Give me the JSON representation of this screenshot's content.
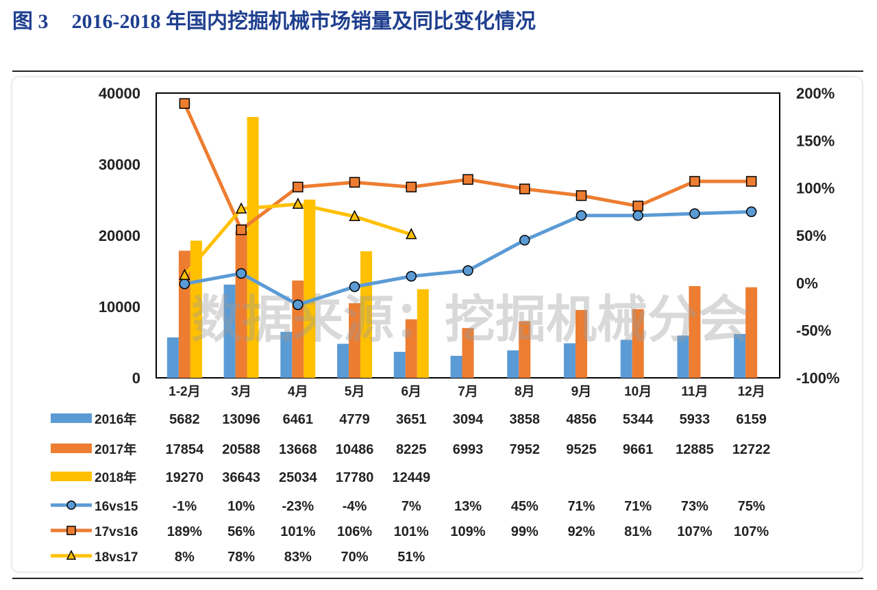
{
  "header": {
    "figure_number": "图 3",
    "figure_title": "2016-2018 年国内挖掘机械市场销量及同比变化情况"
  },
  "watermark": "数据来源：挖掘机械分会",
  "chart_data": {
    "type": "bar",
    "categories": [
      "1-2月",
      "3月",
      "4月",
      "5月",
      "6月",
      "7月",
      "8月",
      "9月",
      "10月",
      "11月",
      "12月"
    ],
    "y_left": {
      "ticks": [
        "0",
        "10000",
        "20000",
        "30000",
        "40000"
      ],
      "range": [
        0,
        40000
      ]
    },
    "y_right": {
      "ticks": [
        "-100%",
        "-50%",
        "0%",
        "50%",
        "100%",
        "150%",
        "200%"
      ],
      "range": [
        -100,
        200
      ]
    },
    "bar_series": [
      {
        "name": "2016年",
        "color": "#5b9bd5",
        "values": [
          5682,
          13096,
          6461,
          4779,
          3651,
          3094,
          3858,
          4856,
          5344,
          5933,
          6159
        ],
        "labels": [
          "5682",
          "13096",
          "6461",
          "4779",
          "3651",
          "3094",
          "3858",
          "4856",
          "5344",
          "5933",
          "6159"
        ]
      },
      {
        "name": "2017年",
        "color": "#ed7d31",
        "values": [
          17854,
          20588,
          13668,
          10486,
          8225,
          6993,
          7952,
          9525,
          9661,
          12885,
          12722
        ],
        "labels": [
          "17854",
          "20588",
          "13668",
          "10486",
          "8225",
          "6993",
          "7952",
          "9525",
          "9661",
          "12885",
          "12722"
        ]
      },
      {
        "name": "2018年",
        "color": "#ffc000",
        "values": [
          19270,
          36643,
          25034,
          17780,
          12449,
          null,
          null,
          null,
          null,
          null,
          null
        ],
        "labels": [
          "19270",
          "36643",
          "25034",
          "17780",
          "12449",
          "",
          "",
          "",
          "",
          "",
          ""
        ]
      }
    ],
    "line_series": [
      {
        "name": "16vs15",
        "color": "#5b9bd5",
        "marker": "circle",
        "values": [
          -1,
          10,
          -23,
          -4,
          7,
          13,
          45,
          71,
          71,
          73,
          75
        ],
        "labels": [
          "-1%",
          "10%",
          "-23%",
          "-4%",
          "7%",
          "13%",
          "45%",
          "71%",
          "71%",
          "73%",
          "75%"
        ]
      },
      {
        "name": "17vs16",
        "color": "#ed7d31",
        "marker": "square",
        "values": [
          189,
          56,
          101,
          106,
          101,
          109,
          99,
          92,
          81,
          107,
          107
        ],
        "labels": [
          "189%",
          "56%",
          "101%",
          "106%",
          "101%",
          "109%",
          "99%",
          "92%",
          "81%",
          "107%",
          "107%"
        ]
      },
      {
        "name": "18vs17",
        "color": "#ffc000",
        "marker": "triangle",
        "values": [
          8,
          78,
          83,
          70,
          51,
          null,
          null,
          null,
          null,
          null,
          null
        ],
        "labels": [
          "8%",
          "78%",
          "83%",
          "70%",
          "51%",
          "",
          "",
          "",
          "",
          "",
          ""
        ]
      }
    ]
  }
}
